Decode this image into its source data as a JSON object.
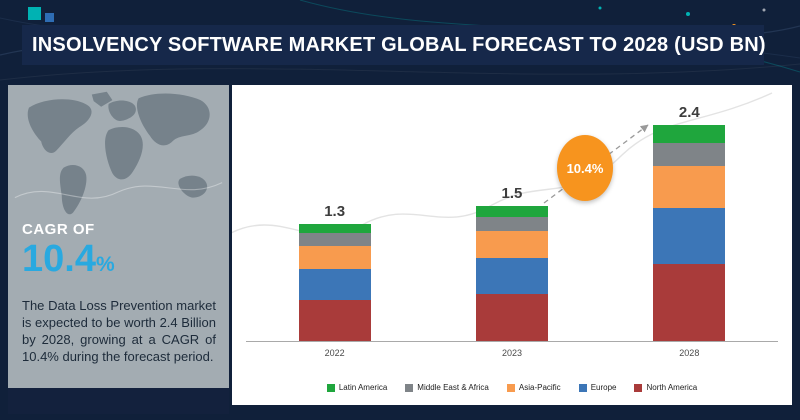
{
  "header": {
    "title": "INSOLVENCY SOFTWARE MARKET GLOBAL FORECAST TO 2028 (USD BN)"
  },
  "sidebar": {
    "cagr_label": "CAGR OF",
    "cagr_value": "10.4",
    "cagr_unit": "%",
    "description": "The Data Loss Prevention market is expected to be worth 2.4 Billion by 2028, growing at a CAGR of 10.4% during the forecast period."
  },
  "chart_data": {
    "type": "bar",
    "stacked": true,
    "title": "Insolvency Software Market Global Forecast to 2028 (USD BN)",
    "categories": [
      "2022",
      "2023",
      "2028"
    ],
    "totals": [
      "1.3",
      "1.5",
      "2.4"
    ],
    "series": [
      {
        "name": "North America",
        "color": "#a93b3a",
        "values": [
          0.45,
          0.52,
          0.85
        ]
      },
      {
        "name": "Europe",
        "color": "#3c76b7",
        "values": [
          0.35,
          0.4,
          0.62
        ]
      },
      {
        "name": "Asia-Pacific",
        "color": "#f89b4e",
        "values": [
          0.26,
          0.3,
          0.47
        ]
      },
      {
        "name": "Middle East & Africa",
        "color": "#7f8488",
        "values": [
          0.14,
          0.16,
          0.26
        ]
      },
      {
        "name": "Latin America",
        "color": "#1fa63d",
        "values": [
          0.1,
          0.12,
          0.2
        ]
      }
    ],
    "legend_order": [
      "Latin America",
      "Middle East & Africa",
      "Asia-Pacific",
      "Europe",
      "North America"
    ],
    "growth_label": "10.4%",
    "xlabel": "",
    "ylabel": "",
    "ylim": [
      0,
      2.6
    ],
    "grid": false,
    "legend_position": "bottom"
  },
  "colors": {
    "background": "#10203a",
    "header_band": "#16284a",
    "accent_teal": "#00b2b3",
    "accent_blue": "#2e6db4",
    "cagr_blue": "#29a9e0",
    "sidebar_bg": "#a3acb2",
    "growth_badge": "#f7941e"
  }
}
